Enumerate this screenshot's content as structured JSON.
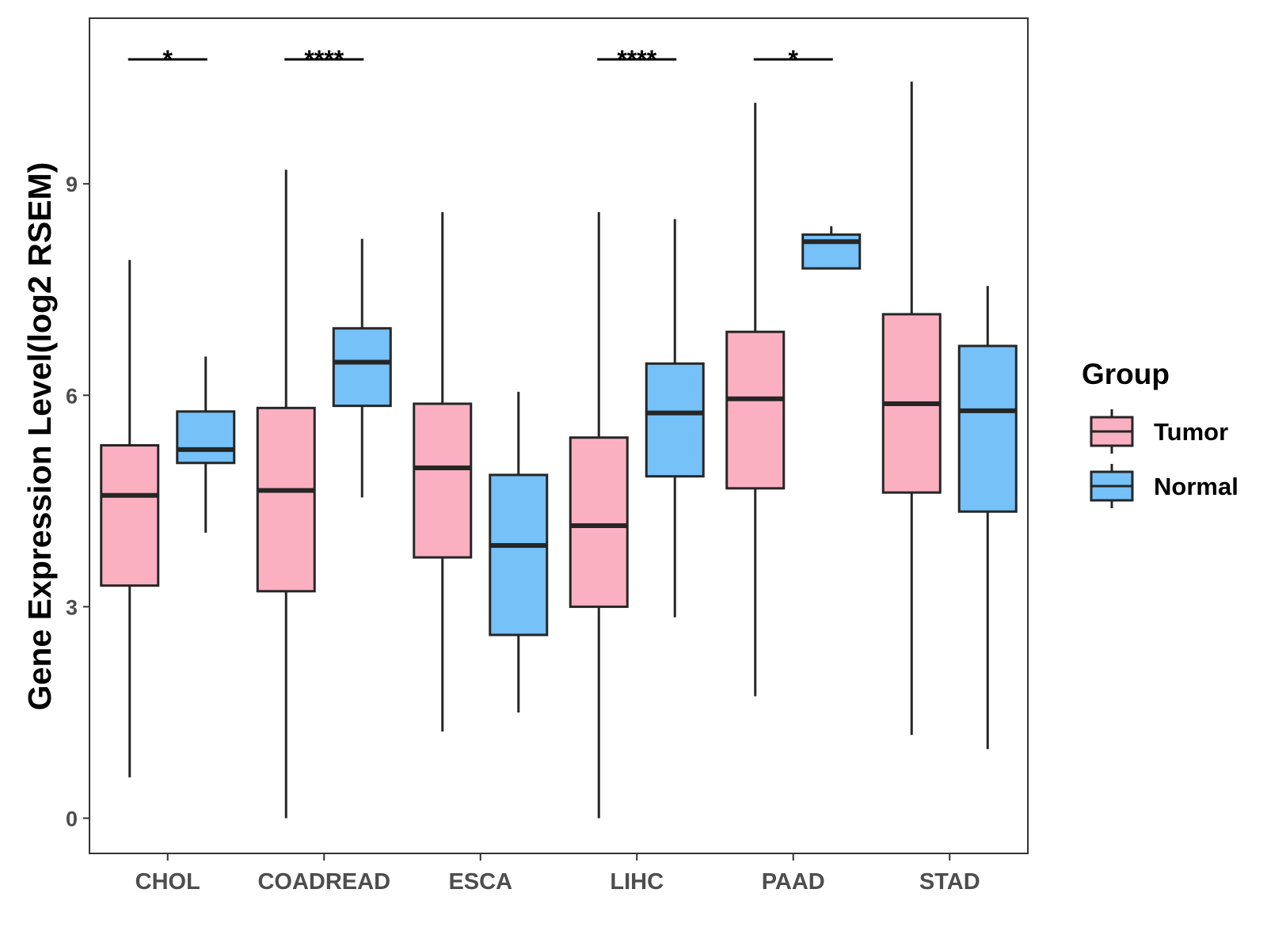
{
  "chart_data": {
    "type": "boxplot",
    "title": "",
    "xlabel": "",
    "ylabel": "Gene Expression Level(log2 RSEM)",
    "ylim": [
      -0.5,
      11.35
    ],
    "yticks": [
      0,
      3,
      6,
      9
    ],
    "grid": false,
    "categories": [
      "CHOL",
      "COADREAD",
      "ESCA",
      "LIHC",
      "PAAD",
      "STAD"
    ],
    "legend": {
      "title": "Group",
      "position": "right",
      "entries": [
        {
          "name": "Tumor",
          "color": "#FBB0C1"
        },
        {
          "name": "Normal",
          "color": "#75C1F8"
        }
      ]
    },
    "series": [
      {
        "name": "Tumor",
        "color": "#FBB0C1",
        "boxes": [
          {
            "category": "CHOL",
            "min": 0.58,
            "q1": 3.3,
            "median": 4.58,
            "q3": 5.29,
            "max": 7.92
          },
          {
            "category": "COADREAD",
            "min": 0.0,
            "q1": 3.22,
            "median": 4.65,
            "q3": 5.82,
            "max": 9.2
          },
          {
            "category": "ESCA",
            "min": 1.23,
            "q1": 3.7,
            "median": 4.97,
            "q3": 5.88,
            "max": 8.6
          },
          {
            "category": "LIHC",
            "min": 0.0,
            "q1": 3.0,
            "median": 4.15,
            "q3": 5.4,
            "max": 8.6
          },
          {
            "category": "PAAD",
            "min": 1.73,
            "q1": 4.68,
            "median": 5.95,
            "q3": 6.9,
            "max": 10.15
          },
          {
            "category": "STAD",
            "min": 1.18,
            "q1": 4.62,
            "median": 5.88,
            "q3": 7.15,
            "max": 10.45
          }
        ]
      },
      {
        "name": "Normal",
        "color": "#75C1F8",
        "boxes": [
          {
            "category": "CHOL",
            "min": 4.05,
            "q1": 5.04,
            "median": 5.23,
            "q3": 5.77,
            "max": 6.55
          },
          {
            "category": "COADREAD",
            "min": 4.55,
            "q1": 5.85,
            "median": 6.47,
            "q3": 6.95,
            "max": 8.22
          },
          {
            "category": "ESCA",
            "min": 1.5,
            "q1": 2.6,
            "median": 3.87,
            "q3": 4.87,
            "max": 6.05
          },
          {
            "category": "LIHC",
            "min": 2.85,
            "q1": 4.85,
            "median": 5.75,
            "q3": 6.45,
            "max": 8.5
          },
          {
            "category": "PAAD",
            "min": 7.8,
            "q1": 7.8,
            "median": 8.18,
            "q3": 8.28,
            "max": 8.4
          },
          {
            "category": "STAD",
            "min": 0.98,
            "q1": 4.35,
            "median": 5.78,
            "q3": 6.7,
            "max": 7.55
          }
        ]
      }
    ],
    "significance": [
      {
        "category": "CHOL",
        "label": "*"
      },
      {
        "category": "COADREAD",
        "label": "****"
      },
      {
        "category": "LIHC",
        "label": "****"
      },
      {
        "category": "PAAD",
        "label": "*"
      }
    ]
  }
}
